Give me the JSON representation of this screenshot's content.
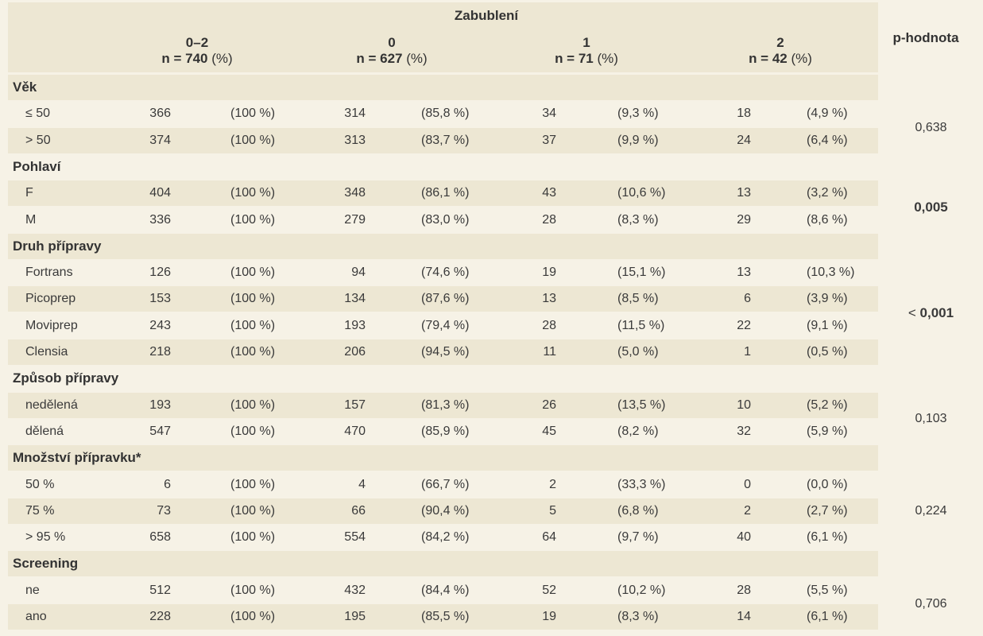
{
  "header": {
    "group_title": "Zabublení",
    "p_label": "p-hodnota",
    "columns": [
      {
        "title": "0–2",
        "n": "n = 740",
        "pct": " (%)"
      },
      {
        "title": "0",
        "n": "n = 627",
        "pct": " (%)"
      },
      {
        "title": "1",
        "n": "n = 71",
        "pct": " (%)"
      },
      {
        "title": "2",
        "n": "n = 42",
        "pct": " (%)"
      }
    ]
  },
  "sections": [
    {
      "title": "Věk",
      "p": "0,638",
      "p_bold": false,
      "rows": [
        {
          "label": "≤ 50",
          "v": [
            "366",
            "(100 %)",
            "314",
            "(85,8 %)",
            "34",
            "(9,3 %)",
            "18",
            "(4,9 %)"
          ]
        },
        {
          "label": "> 50",
          "v": [
            "374",
            "(100 %)",
            "313",
            "(83,7 %)",
            "37",
            "(9,9 %)",
            "24",
            "(6,4 %)"
          ]
        }
      ]
    },
    {
      "title": "Pohlaví",
      "p": "0,005",
      "p_bold": true,
      "rows": [
        {
          "label": "F",
          "v": [
            "404",
            "(100 %)",
            "348",
            "(86,1 %)",
            "43",
            "(10,6 %)",
            "13",
            "(3,2 %)"
          ]
        },
        {
          "label": "M",
          "v": [
            "336",
            "(100 %)",
            "279",
            "(83,0 %)",
            "28",
            "(8,3 %)",
            "29",
            "(8,6 %)"
          ]
        }
      ]
    },
    {
      "title": "Druh přípravy",
      "p_prefix": "< ",
      "p": "0,001",
      "p_bold": true,
      "rows": [
        {
          "label": "Fortrans",
          "v": [
            "126",
            "(100 %)",
            "94",
            "(74,6 %)",
            "19",
            "(15,1 %)",
            "13",
            "(10,3 %)"
          ]
        },
        {
          "label": "Picoprep",
          "v": [
            "153",
            "(100 %)",
            "134",
            "(87,6 %)",
            "13",
            "(8,5 %)",
            "6",
            "(3,9 %)"
          ]
        },
        {
          "label": "Moviprep",
          "v": [
            "243",
            "(100 %)",
            "193",
            "(79,4 %)",
            "28",
            "(11,5 %)",
            "22",
            "(9,1 %)"
          ]
        },
        {
          "label": "Clensia",
          "v": [
            "218",
            "(100 %)",
            "206",
            "(94,5 %)",
            "11",
            "(5,0 %)",
            "1",
            "(0,5 %)"
          ]
        }
      ]
    },
    {
      "title": "Způsob přípravy",
      "p": "0,103",
      "p_bold": false,
      "rows": [
        {
          "label": "nedělená",
          "v": [
            "193",
            "(100 %)",
            "157",
            "(81,3 %)",
            "26",
            "(13,5 %)",
            "10",
            "(5,2 %)"
          ]
        },
        {
          "label": "dělená",
          "v": [
            "547",
            "(100 %)",
            "470",
            "(85,9 %)",
            "45",
            "(8,2 %)",
            "32",
            "(5,9 %)"
          ]
        }
      ]
    },
    {
      "title": "Množství přípravku*",
      "p": "0,224",
      "p_bold": false,
      "rows": [
        {
          "label": "50 %",
          "v": [
            "6",
            "(100 %)",
            "4",
            "(66,7 %)",
            "2",
            "(33,3 %)",
            "0",
            "(0,0 %)"
          ]
        },
        {
          "label": "75 %",
          "v": [
            "73",
            "(100 %)",
            "66",
            "(90,4 %)",
            "5",
            "(6,8 %)",
            "2",
            "(2,7 %)"
          ]
        },
        {
          "label": "> 95 %",
          "v": [
            "658",
            "(100 %)",
            "554",
            "(84,2 %)",
            "64",
            "(9,7 %)",
            "40",
            "(6,1 %)"
          ]
        }
      ]
    },
    {
      "title": "Screening",
      "p": "0,706",
      "p_bold": false,
      "rows": [
        {
          "label": "ne",
          "v": [
            "512",
            "(100 %)",
            "432",
            "(84,4 %)",
            "52",
            "(10,2 %)",
            "28",
            "(5,5 %)"
          ]
        },
        {
          "label": "ano",
          "v": [
            "228",
            "(100 %)",
            "195",
            "(85,5 %)",
            "19",
            "(8,3 %)",
            "14",
            "(6,1 %)"
          ]
        }
      ]
    }
  ]
}
